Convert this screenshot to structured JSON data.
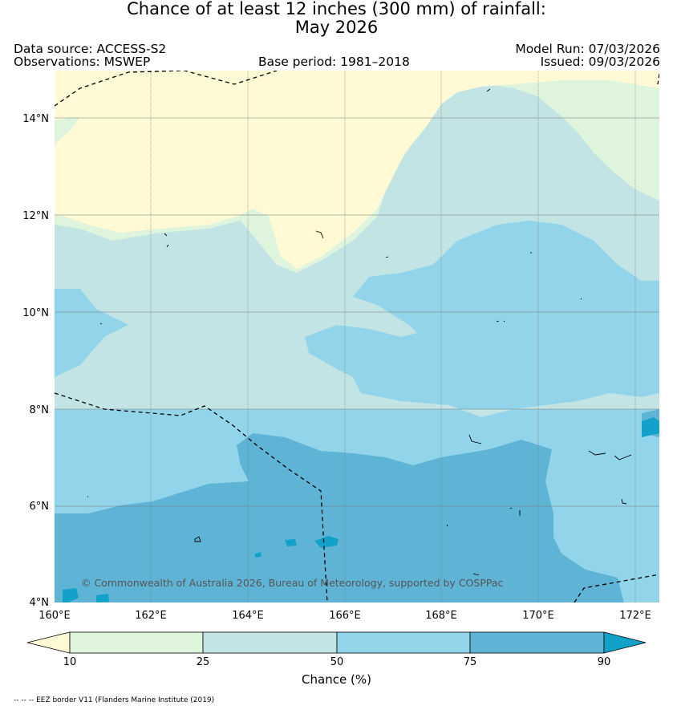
{
  "title": {
    "line1": "Chance of at least 12 inches (300  mm) of rainfall:",
    "line2": "May 2026"
  },
  "meta": {
    "data_source": "Data source: ACCESS-S2",
    "observations": "Observations: MSWEP",
    "base_period": "Base period: 1981–2018",
    "model_run": "Model Run: 07/03/2026",
    "issued": "Issued: 09/03/2026"
  },
  "map": {
    "lon_range": [
      160,
      172.5
    ],
    "lat_range": [
      4,
      15
    ],
    "lon_ticks": [
      "160°E",
      "162°E",
      "164°E",
      "166°E",
      "168°E",
      "170°E",
      "172°E"
    ],
    "lat_ticks": [
      "4°N",
      "6°N",
      "8°N",
      "10°N",
      "12°N",
      "14°N"
    ],
    "copyright": "© Commonwealth of Australia 2026, Bureau of Meteorology, supported by COSPPac",
    "eez_note": "-- -- -- EEZ border V11 (Flanders Marine Institute (2019)"
  },
  "colorbar": {
    "label": "Chance (%)",
    "ticks": [
      "10",
      "25",
      "50",
      "75",
      "90"
    ],
    "colors": [
      "#fffad5",
      "#dff4dc",
      "#c3e4e5",
      "#92d5ea",
      "#5fb4d6",
      "#12a2c9"
    ]
  }
}
